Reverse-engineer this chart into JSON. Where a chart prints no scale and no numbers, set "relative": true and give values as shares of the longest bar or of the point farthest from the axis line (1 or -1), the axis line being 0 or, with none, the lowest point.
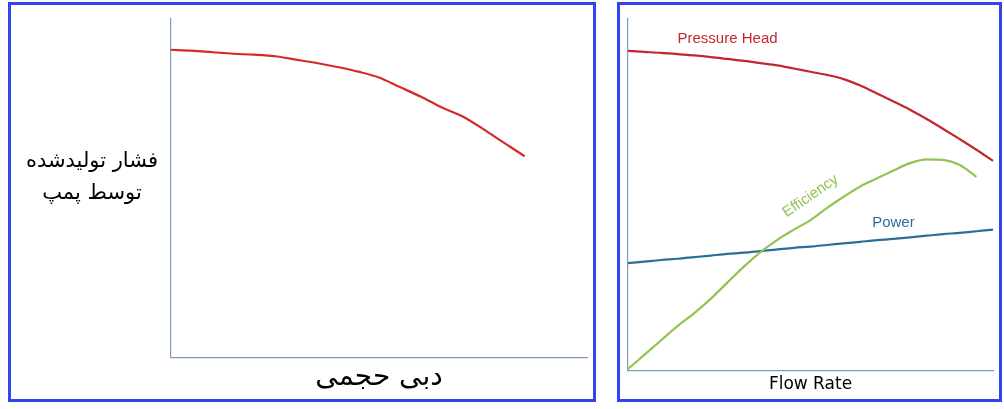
{
  "chart_data": [
    {
      "type": "line",
      "relative": true,
      "xlabel": "دبی حجمی",
      "ylabel": "فشار تولیدشده توسط پمپ",
      "categories": [
        null,
        null,
        null,
        null,
        null,
        null,
        null,
        null,
        null,
        null,
        null,
        null,
        null,
        null,
        null,
        null,
        null,
        null,
        null,
        null,
        null
      ],
      "color": "#d42a2a",
      "values": [
        1.0,
        0.997,
        0.992,
        0.987,
        0.984,
        0.979,
        0.968,
        0.957,
        0.944,
        0.929,
        0.91,
        0.879,
        0.848,
        0.813,
        0.784,
        0.743,
        0.698,
        0.654,
        null,
        null,
        null
      ]
    },
    {
      "type": "line",
      "relative": true,
      "xlabel": "Flow Rate",
      "categories": [
        null,
        null,
        null,
        null,
        null,
        null,
        null,
        null,
        null,
        null,
        null,
        null,
        null,
        null,
        null,
        null,
        null,
        null,
        null,
        null,
        null,
        null,
        null
      ],
      "series": [
        {
          "name": "Pressure Head",
          "color": "#c0282d",
          "values": [
            1.0,
            0.997,
            0.994,
            0.99,
            0.986,
            0.981,
            0.975,
            0.969,
            0.962,
            0.955,
            0.945,
            0.935,
            0.925,
            0.912,
            0.892,
            0.867,
            0.842,
            0.816,
            0.787,
            0.756,
            0.724,
            0.691,
            0.656
          ]
        },
        {
          "name": "Efficiency",
          "color": "#92c353",
          "values": [
            0.005,
            0.05,
            0.095,
            0.14,
            0.18,
            0.225,
            0.276,
            0.326,
            0.371,
            0.409,
            0.441,
            0.471,
            0.509,
            0.544,
            0.576,
            0.601,
            0.626,
            0.649,
            0.661,
            0.659,
            0.643,
            0.606,
            null
          ]
        },
        {
          "name": "Power",
          "color": "#2a6f97",
          "values": [
            0.336,
            0.341,
            0.346,
            0.35,
            0.355,
            0.36,
            0.365,
            0.369,
            0.374,
            0.379,
            0.384,
            0.388,
            0.393,
            0.398,
            0.403,
            0.408,
            0.412,
            0.417,
            0.422,
            0.427,
            0.431,
            0.436,
            0.441
          ]
        }
      ]
    }
  ]
}
